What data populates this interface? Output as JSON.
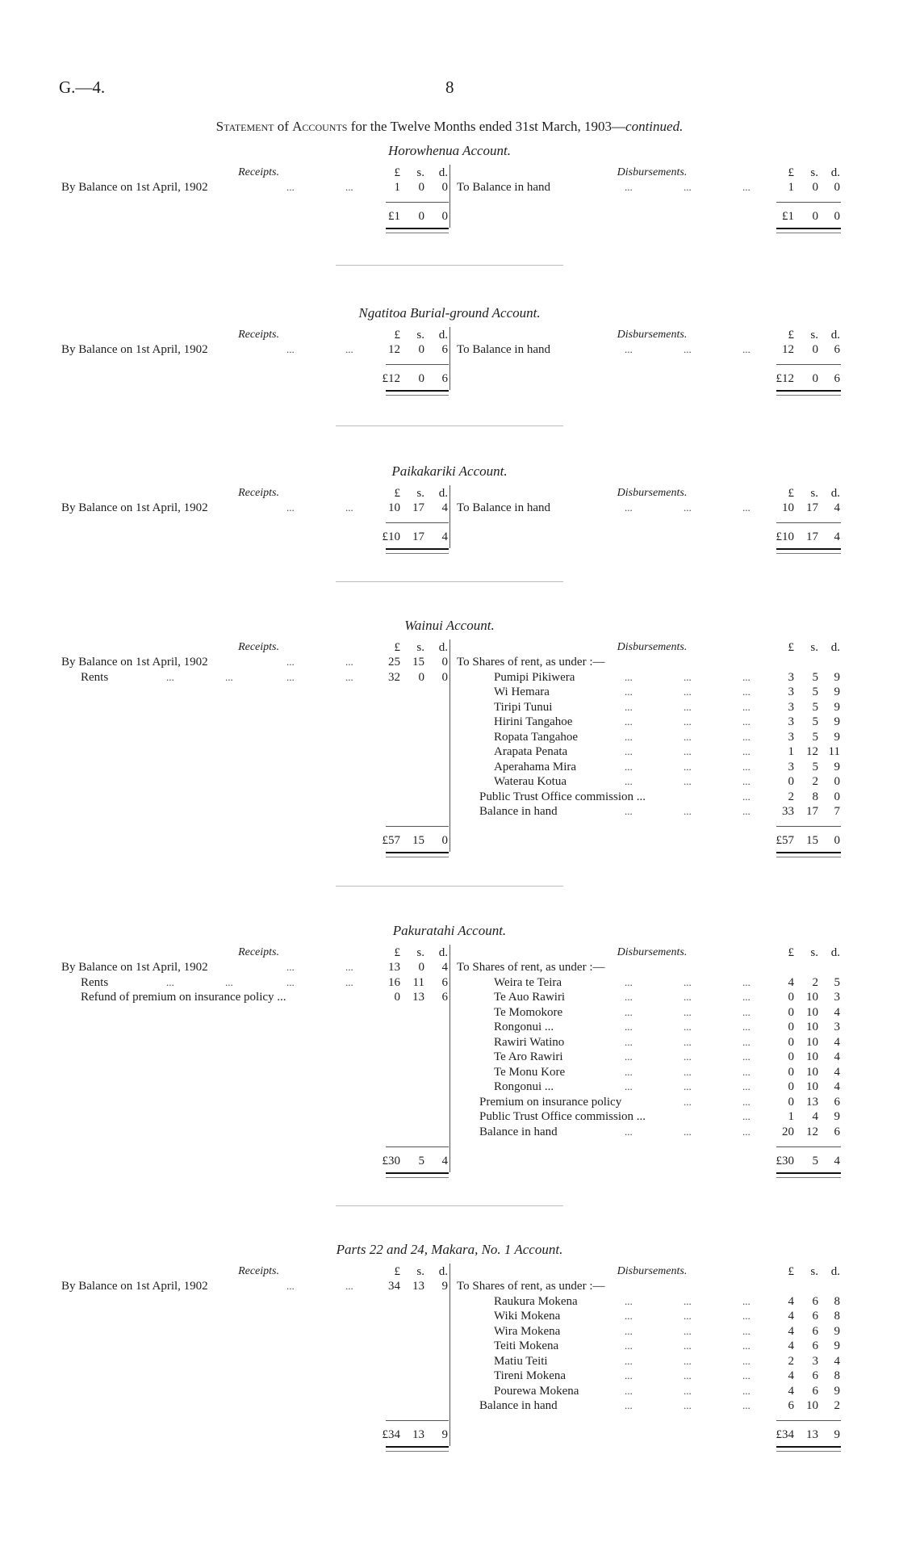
{
  "page": {
    "doc_id": "G.—4.",
    "page_number": "8",
    "title": {
      "part1": "Statement",
      "part2": " of ",
      "part3": "Accounts",
      "part4": " for the Twelve Months ended 31st March, 1903—",
      "part5": "continued."
    }
  },
  "leader": "...",
  "accounts": [
    {
      "title": "Horowhenua Account.",
      "receipts_header": "Receipts.",
      "disbursements_header": "Disbursements.",
      "currency": [
        "£",
        "s.",
        "d."
      ],
      "receipts": [
        {
          "label": "By Balance on 1st April, 1902",
          "indent": 0,
          "leaders": 2,
          "amount": [
            "1",
            "0",
            "0"
          ]
        }
      ],
      "receipts_total": [
        "£1",
        "0",
        "0"
      ],
      "disbursements": [
        {
          "label": "To Balance in hand",
          "indent": 0,
          "leaders": 3,
          "amount": [
            "1",
            "0",
            "0"
          ]
        }
      ],
      "disbursements_total": [
        "£1",
        "0",
        "0"
      ]
    },
    {
      "title": "Ngatitoa Burial-ground Account.",
      "receipts_header": "Receipts.",
      "disbursements_header": "Disbursements.",
      "currency": [
        "£",
        "s.",
        "d."
      ],
      "receipts": [
        {
          "label": "By Balance on 1st April, 1902",
          "indent": 0,
          "leaders": 2,
          "amount": [
            "12",
            "0",
            "6"
          ]
        }
      ],
      "receipts_total": [
        "£12",
        "0",
        "6"
      ],
      "disbursements": [
        {
          "label": "To Balance in hand",
          "indent": 0,
          "leaders": 3,
          "amount": [
            "12",
            "0",
            "6"
          ]
        }
      ],
      "disbursements_total": [
        "£12",
        "0",
        "6"
      ]
    },
    {
      "title": "Paikakariki Account.",
      "receipts_header": "Receipts.",
      "disbursements_header": "Disbursements.",
      "currency": [
        "£",
        "s.",
        "d."
      ],
      "receipts": [
        {
          "label": "By Balance on 1st April, 1902",
          "indent": 0,
          "leaders": 2,
          "amount": [
            "10",
            "17",
            "4"
          ]
        }
      ],
      "receipts_total": [
        "£10",
        "17",
        "4"
      ],
      "disbursements": [
        {
          "label": "To Balance in hand",
          "indent": 0,
          "leaders": 3,
          "amount": [
            "10",
            "17",
            "4"
          ]
        }
      ],
      "disbursements_total": [
        "£10",
        "17",
        "4"
      ]
    },
    {
      "title": "Wainui Account.",
      "receipts_header": "Receipts.",
      "disbursements_header": "Disbursements.",
      "currency": [
        "£",
        "s.",
        "d."
      ],
      "receipts": [
        {
          "label": "By Balance on 1st April, 1902",
          "indent": 0,
          "leaders": 2,
          "amount": [
            "25",
            "15",
            "0"
          ]
        },
        {
          "label": "Rents",
          "indent": 1,
          "leaders": 4,
          "amount": [
            "32",
            "0",
            "0"
          ]
        }
      ],
      "receipts_total": [
        "£57",
        "15",
        "0"
      ],
      "disbursements": [
        {
          "label": "To Shares of rent, as under :—",
          "indent": 0,
          "leaders": 0,
          "amount": null
        },
        {
          "label": "Pumipi Pikiwera",
          "indent": 2,
          "leaders": 3,
          "amount": [
            "3",
            "5",
            "9"
          ]
        },
        {
          "label": "Wi Hemara",
          "indent": 2,
          "leaders": 3,
          "amount": [
            "3",
            "5",
            "9"
          ]
        },
        {
          "label": "Tiripi Tunui",
          "indent": 2,
          "leaders": 3,
          "amount": [
            "3",
            "5",
            "9"
          ]
        },
        {
          "label": "Hirini Tangahoe",
          "indent": 2,
          "leaders": 3,
          "amount": [
            "3",
            "5",
            "9"
          ]
        },
        {
          "label": "Ropata Tangahoe",
          "indent": 2,
          "leaders": 3,
          "amount": [
            "3",
            "5",
            "9"
          ]
        },
        {
          "label": "Arapata Penata",
          "indent": 2,
          "leaders": 3,
          "amount": [
            "1",
            "12",
            "11"
          ]
        },
        {
          "label": "Aperahama Mira",
          "indent": 2,
          "leaders": 3,
          "amount": [
            "3",
            "5",
            "9"
          ]
        },
        {
          "label": "Waterau Kotua",
          "indent": 2,
          "leaders": 3,
          "amount": [
            "0",
            "2",
            "0"
          ]
        },
        {
          "label": "Public Trust Office commission ...",
          "indent": 1,
          "leaders": 1,
          "amount": [
            "2",
            "8",
            "0"
          ]
        },
        {
          "label": "Balance in hand",
          "indent": 1,
          "leaders": 3,
          "amount": [
            "33",
            "17",
            "7"
          ]
        }
      ],
      "disbursements_total": [
        "£57",
        "15",
        "0"
      ]
    },
    {
      "title": "Pakuratahi Account.",
      "receipts_header": "Receipts.",
      "disbursements_header": "Disbursements.",
      "currency": [
        "£",
        "s.",
        "d."
      ],
      "receipts": [
        {
          "label": "By Balance on 1st April, 1902",
          "indent": 0,
          "leaders": 2,
          "amount": [
            "13",
            "0",
            "4"
          ]
        },
        {
          "label": "Rents",
          "indent": 1,
          "leaders": 4,
          "amount": [
            "16",
            "11",
            "6"
          ]
        },
        {
          "label": "Refund of premium on insurance policy ...",
          "indent": 1,
          "leaders": 0,
          "amount": [
            "0",
            "13",
            "6"
          ]
        }
      ],
      "receipts_total": [
        "£30",
        "5",
        "4"
      ],
      "disbursements": [
        {
          "label": "To Shares of rent, as under :—",
          "indent": 0,
          "leaders": 0,
          "amount": null
        },
        {
          "label": "Weira te Teira",
          "indent": 2,
          "leaders": 3,
          "amount": [
            "4",
            "2",
            "5"
          ]
        },
        {
          "label": "Te Auo Rawiri",
          "indent": 2,
          "leaders": 3,
          "amount": [
            "0",
            "10",
            "3"
          ]
        },
        {
          "label": "Te Momokore",
          "indent": 2,
          "leaders": 3,
          "amount": [
            "0",
            "10",
            "4"
          ]
        },
        {
          "label": "Rongonui ...",
          "indent": 2,
          "leaders": 3,
          "amount": [
            "0",
            "10",
            "3"
          ]
        },
        {
          "label": "Rawiri Watino",
          "indent": 2,
          "leaders": 3,
          "amount": [
            "0",
            "10",
            "4"
          ]
        },
        {
          "label": "Te Aro Rawiri",
          "indent": 2,
          "leaders": 3,
          "amount": [
            "0",
            "10",
            "4"
          ]
        },
        {
          "label": "Te Monu Kore",
          "indent": 2,
          "leaders": 3,
          "amount": [
            "0",
            "10",
            "4"
          ]
        },
        {
          "label": "Rongonui ...",
          "indent": 2,
          "leaders": 3,
          "amount": [
            "0",
            "10",
            "4"
          ]
        },
        {
          "label": "Premium on insurance policy",
          "indent": 1,
          "leaders": 2,
          "amount": [
            "0",
            "13",
            "6"
          ]
        },
        {
          "label": "Public Trust Office commission ...",
          "indent": 1,
          "leaders": 1,
          "amount": [
            "1",
            "4",
            "9"
          ]
        },
        {
          "label": "Balance in hand",
          "indent": 1,
          "leaders": 3,
          "amount": [
            "20",
            "12",
            "6"
          ]
        }
      ],
      "disbursements_total": [
        "£30",
        "5",
        "4"
      ]
    },
    {
      "title": "Parts 22 and 24, Makara, No. 1 Account.",
      "receipts_header": "Receipts.",
      "disbursements_header": "Disbursements.",
      "currency": [
        "£",
        "s.",
        "d."
      ],
      "receipts": [
        {
          "label": "By Balance on 1st April, 1902",
          "indent": 0,
          "leaders": 2,
          "amount": [
            "34",
            "13",
            "9"
          ]
        }
      ],
      "receipts_total": [
        "£34",
        "13",
        "9"
      ],
      "disbursements": [
        {
          "label": "To Shares of rent, as under :—",
          "indent": 0,
          "leaders": 0,
          "amount": null
        },
        {
          "label": "Raukura Mokena",
          "indent": 2,
          "leaders": 3,
          "amount": [
            "4",
            "6",
            "8"
          ]
        },
        {
          "label": "Wiki Mokena",
          "indent": 2,
          "leaders": 3,
          "amount": [
            "4",
            "6",
            "8"
          ]
        },
        {
          "label": "Wira Mokena",
          "indent": 2,
          "leaders": 3,
          "amount": [
            "4",
            "6",
            "9"
          ]
        },
        {
          "label": "Teiti Mokena",
          "indent": 2,
          "leaders": 3,
          "amount": [
            "4",
            "6",
            "9"
          ]
        },
        {
          "label": "Matiu Teiti",
          "indent": 2,
          "leaders": 3,
          "amount": [
            "2",
            "3",
            "4"
          ]
        },
        {
          "label": "Tireni Mokena",
          "indent": 2,
          "leaders": 3,
          "amount": [
            "4",
            "6",
            "8"
          ]
        },
        {
          "label": "Pourewa Mokena",
          "indent": 2,
          "leaders": 3,
          "amount": [
            "4",
            "6",
            "9"
          ]
        },
        {
          "label": "Balance in hand",
          "indent": 1,
          "leaders": 3,
          "amount": [
            "6",
            "10",
            "2"
          ]
        }
      ],
      "disbursements_total": [
        "£34",
        "13",
        "9"
      ]
    }
  ]
}
